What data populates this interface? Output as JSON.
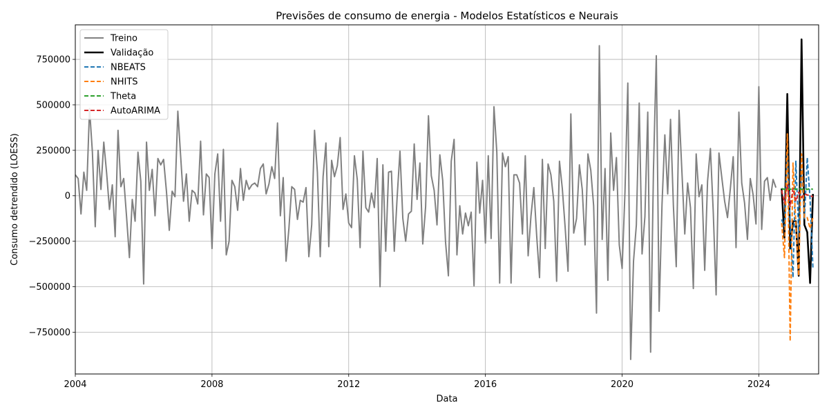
{
  "chart_data": {
    "type": "line",
    "title": "Previsões de consumo de energia - Modelos Estatísticos e Neurais",
    "xlabel": "Data",
    "ylabel": "Consumo detrendido (LOESS)",
    "xlim": [
      2004.0,
      2025.75
    ],
    "ylim": [
      -980000,
      940000
    ],
    "x_ticks": [
      {
        "value": 2004,
        "label": "2004"
      },
      {
        "value": 2008,
        "label": "2008"
      },
      {
        "value": 2012,
        "label": "2012"
      },
      {
        "value": 2016,
        "label": "2016"
      },
      {
        "value": 2020,
        "label": "2020"
      },
      {
        "value": 2024,
        "label": "2024"
      }
    ],
    "y_ticks": [
      {
        "value": 750000,
        "label": "750000"
      },
      {
        "value": 500000,
        "label": "500000"
      },
      {
        "value": 250000,
        "label": "250000"
      },
      {
        "value": 0,
        "label": "0"
      },
      {
        "value": -250000,
        "label": "−250000"
      },
      {
        "value": -500000,
        "label": "−500000"
      },
      {
        "value": -750000,
        "label": "−750000"
      }
    ],
    "grid": true,
    "legend_position": "upper-left",
    "series": [
      {
        "name": "Treino",
        "color": "#808080",
        "style": "solid",
        "width": 2,
        "start": 2004.0,
        "step": 0.0833333,
        "values": [
          115000,
          95000,
          -100000,
          130000,
          30000,
          480000,
          240000,
          -170000,
          250000,
          35000,
          295000,
          125000,
          -75000,
          60000,
          -225000,
          360000,
          50000,
          95000,
          -115000,
          -340000,
          -20000,
          -140000,
          240000,
          80000,
          -485000,
          295000,
          30000,
          145000,
          -110000,
          205000,
          170000,
          200000,
          25000,
          -190000,
          25000,
          -5000,
          465000,
          215000,
          -30000,
          120000,
          -140000,
          30000,
          15000,
          -45000,
          300000,
          -105000,
          120000,
          100000,
          -290000,
          120000,
          230000,
          -140000,
          255000,
          -325000,
          -250000,
          85000,
          50000,
          -80000,
          150000,
          -25000,
          85000,
          35000,
          60000,
          70000,
          50000,
          150000,
          175000,
          10000,
          65000,
          160000,
          95000,
          400000,
          -110000,
          100000,
          -360000,
          -180000,
          50000,
          35000,
          -130000,
          -25000,
          -35000,
          45000,
          -335000,
          -160000,
          360000,
          130000,
          -335000,
          105000,
          290000,
          -280000,
          195000,
          105000,
          165000,
          320000,
          -75000,
          10000,
          -150000,
          -175000,
          220000,
          90000,
          -285000,
          245000,
          -65000,
          -90000,
          15000,
          -65000,
          205000,
          -500000,
          170000,
          -305000,
          130000,
          135000,
          -305000,
          -10000,
          245000,
          -125000,
          -250000,
          -100000,
          -85000,
          285000,
          -20000,
          180000,
          -265000,
          -60000,
          440000,
          110000,
          30000,
          -160000,
          225000,
          85000,
          -255000,
          -440000,
          190000,
          310000,
          -325000,
          -55000,
          -210000,
          -95000,
          -165000,
          -90000,
          -495000,
          185000,
          -95000,
          85000,
          -260000,
          220000,
          -235000,
          490000,
          240000,
          -480000,
          235000,
          160000,
          215000,
          -480000,
          115000,
          115000,
          70000,
          -210000,
          220000,
          -330000,
          -110000,
          45000,
          -220000,
          -450000,
          200000,
          -290000,
          175000,
          115000,
          -30000,
          -470000,
          190000,
          40000,
          -175000,
          -415000,
          450000,
          -205000,
          -125000,
          170000,
          35000,
          -270000,
          230000,
          140000,
          -55000,
          -645000,
          825000,
          -240000,
          150000,
          -465000,
          345000,
          30000,
          210000,
          -270000,
          -400000,
          20000,
          620000,
          -900000,
          -360000,
          -160000,
          510000,
          -320000,
          -115000,
          460000,
          -860000,
          140000,
          770000,
          -635000,
          -50000,
          335000,
          10000,
          420000,
          -55000,
          -390000,
          470000,
          130000,
          -210000,
          70000,
          -65000,
          -510000,
          230000,
          -5000,
          60000,
          -410000,
          80000,
          260000,
          -90000,
          -545000,
          235000,
          100000,
          -30000,
          -120000,
          40000,
          215000,
          -285000,
          460000,
          70000,
          -40000,
          -240000,
          95000,
          5000,
          -155000,
          600000,
          -185000,
          80000,
          100000,
          -25000,
          90000,
          45000
        ]
      },
      {
        "name": "Validação",
        "color": "#000000",
        "style": "solid",
        "width": 2.6,
        "start": 2024.6667,
        "step": 0.0833333,
        "values": [
          40000,
          -230000,
          560000,
          -290000,
          -140000,
          -140000,
          -440000,
          860000,
          -160000,
          -200000,
          -480000,
          10000
        ]
      },
      {
        "name": "NBEATS",
        "color": "#1f77b4",
        "style": "dashed",
        "width": 2,
        "start": 2024.6667,
        "step": 0.0833333,
        "values": [
          -130000,
          -170000,
          230000,
          -150000,
          -450000,
          190000,
          -200000,
          140000,
          -130000,
          210000,
          -20000,
          -400000
        ]
      },
      {
        "name": "NHITS",
        "color": "#ff7f0e",
        "style": "dashed",
        "width": 2,
        "start": 2024.6667,
        "step": 0.0833333,
        "values": [
          -150000,
          -340000,
          340000,
          -800000,
          180000,
          -160000,
          -440000,
          230000,
          -120000,
          -120000,
          -180000,
          -120000
        ]
      },
      {
        "name": "Theta",
        "color": "#2ca02c",
        "style": "dashed",
        "width": 2,
        "start": 2024.6667,
        "step": 0.0833333,
        "values": [
          40000,
          35000,
          40000,
          35000,
          40000,
          35000,
          40000,
          35000,
          40000,
          35000,
          40000,
          35000
        ]
      },
      {
        "name": "AutoARIMA",
        "color": "#d62728",
        "style": "dashed",
        "width": 2,
        "start": 2024.6667,
        "step": 0.0833333,
        "values": [
          30000,
          -40000,
          60000,
          -60000,
          40000,
          -30000,
          20000,
          -10000,
          10000,
          5000,
          0,
          -5000
        ]
      }
    ]
  }
}
